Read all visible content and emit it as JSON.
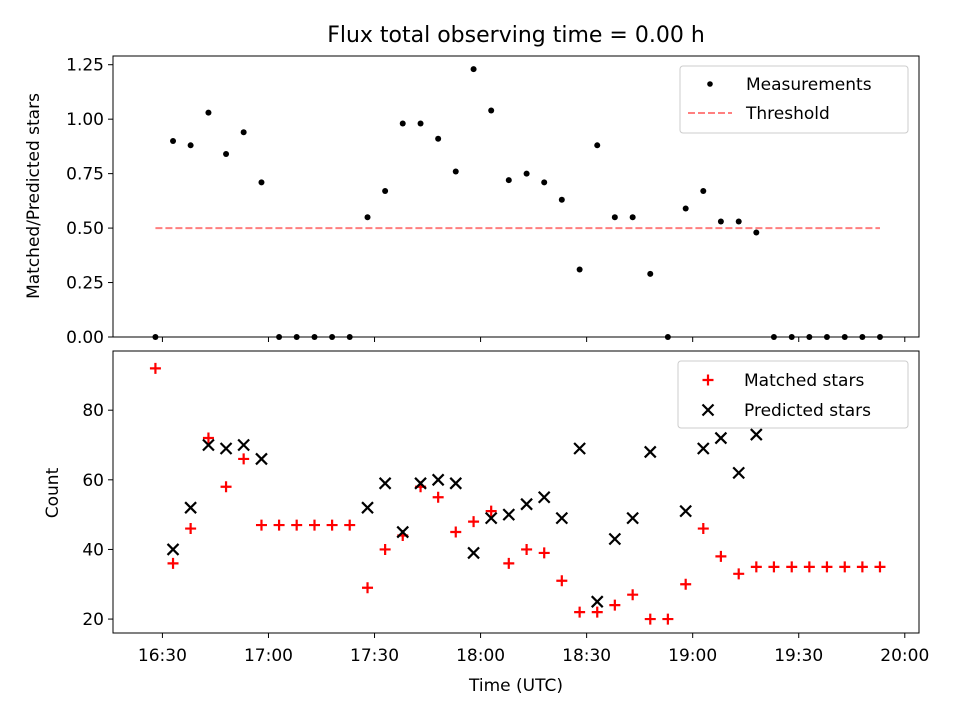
{
  "chart_data": [
    {
      "type": "scatter",
      "title": "Flux total observing time = 0.00 h",
      "ylabel": "Matched/Predicted stars",
      "xlabel": "",
      "ylim": [
        0,
        1.29
      ],
      "yticks": [
        0,
        0.25,
        0.5,
        0.75,
        1.0,
        1.25
      ],
      "ytick_labels": [
        "0.00",
        "0.25",
        "0.50",
        "0.75",
        "1.00",
        "1.25"
      ],
      "legend": {
        "placement": "top-right",
        "entries": [
          "Measurements",
          "Threshold"
        ]
      },
      "series": [
        {
          "name": "Measurements",
          "color": "#000000",
          "x": [
            16.467,
            16.55,
            16.633,
            16.717,
            16.8,
            16.883,
            16.967,
            17.05,
            17.133,
            17.217,
            17.3,
            17.383,
            17.467,
            17.55,
            17.633,
            17.717,
            17.8,
            17.883,
            17.967,
            18.05,
            18.133,
            18.217,
            18.3,
            18.383,
            18.467,
            18.55,
            18.633,
            18.717,
            18.8,
            18.883,
            18.967,
            19.05,
            19.133,
            19.217,
            19.3,
            19.383,
            19.467,
            19.55,
            19.633,
            19.717,
            19.8,
            19.883
          ],
          "values": [
            0.0,
            0.9,
            0.88,
            1.03,
            0.84,
            0.94,
            0.71,
            0.0,
            0.0,
            0.0,
            0.0,
            0.0,
            0.55,
            0.67,
            0.98,
            0.98,
            0.91,
            0.76,
            1.23,
            1.04,
            0.72,
            0.75,
            0.71,
            0.63,
            0.31,
            0.88,
            0.55,
            0.55,
            0.29,
            0.0,
            0.59,
            0.67,
            0.53,
            0.53,
            0.48,
            0.0,
            0.0,
            0.0,
            0.0,
            0.0,
            0.0,
            0.0
          ]
        },
        {
          "name": "Threshold",
          "color": "#ff7f7f",
          "style": "dashed",
          "x": [
            16.467,
            19.883
          ],
          "values": [
            0.5,
            0.5
          ]
        }
      ]
    },
    {
      "type": "scatter",
      "title": "",
      "ylabel": "Count",
      "xlabel": "Time (UTC)",
      "xlim": [
        16.267,
        20.067
      ],
      "ylim": [
        16,
        97
      ],
      "yticks": [
        20,
        40,
        60,
        80
      ],
      "ytick_labels": [
        "20",
        "40",
        "60",
        "80"
      ],
      "xticks": [
        16.5,
        17.0,
        17.5,
        18.0,
        18.5,
        19.0,
        19.5,
        20.0
      ],
      "xtick_labels": [
        "16:30",
        "17:00",
        "17:30",
        "18:00",
        "18:30",
        "19:00",
        "19:30",
        "20:00"
      ],
      "legend": {
        "placement": "top-right",
        "entries": [
          "Matched stars",
          "Predicted stars"
        ]
      },
      "series": [
        {
          "name": "Matched stars",
          "marker": "plus",
          "color": "#ff0000",
          "x": [
            16.467,
            16.55,
            16.633,
            16.717,
            16.8,
            16.883,
            16.967,
            17.05,
            17.133,
            17.217,
            17.3,
            17.383,
            17.467,
            17.55,
            17.633,
            17.717,
            17.8,
            17.883,
            17.967,
            18.05,
            18.133,
            18.217,
            18.3,
            18.383,
            18.467,
            18.55,
            18.633,
            18.717,
            18.8,
            18.883,
            18.967,
            19.05,
            19.133,
            19.217,
            19.3,
            19.383,
            19.467,
            19.55,
            19.633,
            19.717,
            19.8,
            19.883
          ],
          "values": [
            92,
            36,
            46,
            72,
            58,
            66,
            47,
            47,
            47,
            47,
            47,
            47,
            29,
            40,
            44,
            58,
            55,
            45,
            48,
            51,
            36,
            40,
            39,
            31,
            22,
            22,
            24,
            27,
            20,
            20,
            30,
            46,
            38,
            33,
            35,
            35,
            35,
            35,
            35,
            35,
            35,
            35
          ]
        },
        {
          "name": "Predicted stars",
          "marker": "x",
          "color": "#000000",
          "x": [
            16.55,
            16.633,
            16.717,
            16.8,
            16.883,
            16.967,
            17.467,
            17.55,
            17.633,
            17.717,
            17.8,
            17.883,
            17.967,
            18.05,
            18.133,
            18.217,
            18.3,
            18.383,
            18.467,
            18.55,
            18.633,
            18.717,
            18.8,
            18.967,
            19.05,
            19.133,
            19.217,
            19.3
          ],
          "values": [
            40,
            52,
            70,
            69,
            70,
            66,
            52,
            59,
            45,
            59,
            60,
            59,
            39,
            49,
            50,
            53,
            55,
            49,
            69,
            25,
            43,
            49,
            68,
            51,
            69,
            72,
            62,
            73
          ]
        }
      ]
    }
  ]
}
